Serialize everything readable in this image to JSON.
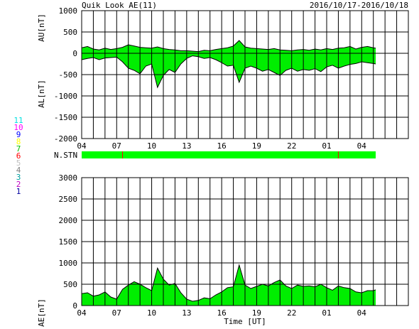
{
  "header": {
    "left_title": "Quik Look AE(11)",
    "right_title": "2016/10/17-2016/10/18"
  },
  "station_legend": [
    {
      "label": "11",
      "color": "#00e0e0"
    },
    {
      "label": "10",
      "color": "#ff00ff"
    },
    {
      "label": "9",
      "color": "#0000ff"
    },
    {
      "label": "8",
      "color": "#ffff00"
    },
    {
      "label": "7",
      "color": "#00c000"
    },
    {
      "label": "6",
      "color": "#ff0000"
    },
    {
      "label": "5",
      "color": "#c0c0c0"
    },
    {
      "label": "4",
      "color": "#808080"
    },
    {
      "label": "3",
      "color": "#00a0a0"
    },
    {
      "label": "2",
      "color": "#c000c0"
    },
    {
      "label": "1",
      "color": "#0000a0"
    }
  ],
  "status_bar": {
    "label": "N.STN",
    "fill_color": "#00ff00",
    "marker_color": "#ff0000",
    "markers_hours": [
      7.5,
      26.0
    ],
    "data_end_hour": 29.2
  },
  "chart_data": [
    {
      "type": "area",
      "ylabel_upper": "AU[nT]",
      "ylabel_lower": "AL[nT]",
      "xlim": [
        4,
        32
      ],
      "ylim": [
        -2000,
        1000
      ],
      "yticks": [
        1000,
        500,
        0,
        -500,
        -1000,
        -1500,
        -2000
      ],
      "xtick_labels": [
        "04",
        "07",
        "10",
        "13",
        "16",
        "19",
        "22",
        "01",
        "04"
      ],
      "xtick_hours": [
        4,
        7,
        10,
        13,
        16,
        19,
        22,
        25,
        28
      ],
      "series": [
        {
          "values_key": "AU",
          "x": [
            4,
            4.5,
            5,
            5.5,
            6,
            6.5,
            7,
            7.5,
            8,
            8.5,
            9,
            9.5,
            10,
            10.5,
            11,
            11.5,
            12,
            12.5,
            13,
            13.5,
            14,
            14.5,
            15,
            15.5,
            16,
            16.5,
            17,
            17.5,
            18,
            18.5,
            19,
            19.5,
            20,
            20.5,
            21,
            21.5,
            22,
            22.5,
            23,
            23.5,
            24,
            24.5,
            25,
            25.5,
            26,
            26.5,
            27,
            27.5,
            28,
            28.5,
            29,
            29.2
          ],
          "y": [
            130,
            160,
            100,
            80,
            120,
            90,
            110,
            140,
            200,
            170,
            140,
            130,
            120,
            150,
            110,
            90,
            80,
            60,
            60,
            50,
            40,
            70,
            60,
            90,
            110,
            130,
            170,
            300,
            150,
            120,
            110,
            100,
            90,
            110,
            80,
            70,
            60,
            80,
            90,
            70,
            100,
            80,
            110,
            90,
            120,
            130,
            160,
            100,
            140,
            160,
            130,
            120
          ]
        },
        {
          "values_key": "AL",
          "x": [
            4,
            4.5,
            5,
            5.5,
            6,
            6.5,
            7,
            7.5,
            8,
            8.5,
            9,
            9.5,
            10,
            10.5,
            11,
            11.5,
            12,
            12.5,
            13,
            13.5,
            14,
            14.5,
            15,
            15.5,
            16,
            16.5,
            17,
            17.5,
            18,
            18.5,
            19,
            19.5,
            20,
            20.5,
            21,
            21.5,
            22,
            22.5,
            23,
            23.5,
            24,
            24.5,
            25,
            25.5,
            26,
            26.5,
            27,
            27.5,
            28,
            28.5,
            29,
            29.2
          ],
          "y": [
            -150,
            -120,
            -100,
            -150,
            -110,
            -100,
            -90,
            -200,
            -350,
            -400,
            -480,
            -300,
            -250,
            -800,
            -520,
            -380,
            -450,
            -250,
            -120,
            -60,
            -80,
            -120,
            -100,
            -150,
            -220,
            -300,
            -280,
            -680,
            -350,
            -300,
            -350,
            -420,
            -380,
            -450,
            -520,
            -400,
            -350,
            -420,
            -380,
            -400,
            -360,
            -430,
            -320,
            -280,
            -350,
            -300,
            -260,
            -240,
            -200,
            -220,
            -240,
            -250
          ]
        }
      ]
    },
    {
      "type": "area",
      "ylabel": "AE[nT]",
      "xlabel": "Time [UT]",
      "xlim": [
        4,
        32
      ],
      "ylim": [
        0,
        3000
      ],
      "yticks": [
        3000,
        2500,
        2000,
        1500,
        1000,
        500,
        0
      ],
      "xtick_labels": [
        "04",
        "07",
        "10",
        "13",
        "16",
        "19",
        "22",
        "01",
        "04"
      ],
      "xtick_hours": [
        4,
        7,
        10,
        13,
        16,
        19,
        22,
        25,
        28
      ],
      "series": [
        {
          "values_key": "AE",
          "x": [
            4,
            4.5,
            5,
            5.5,
            6,
            6.5,
            7,
            7.5,
            8,
            8.5,
            9,
            9.5,
            10,
            10.5,
            11,
            11.5,
            12,
            12.5,
            13,
            13.5,
            14,
            14.5,
            15,
            15.5,
            16,
            16.5,
            17,
            17.5,
            18,
            18.5,
            19,
            19.5,
            20,
            20.5,
            21,
            21.5,
            22,
            22.5,
            23,
            23.5,
            24,
            24.5,
            25,
            25.5,
            26,
            26.5,
            27,
            27.5,
            28,
            28.5,
            29,
            29.2
          ],
          "y": [
            280,
            300,
            220,
            250,
            320,
            200,
            150,
            380,
            480,
            560,
            500,
            420,
            350,
            880,
            620,
            480,
            520,
            300,
            150,
            100,
            120,
            180,
            160,
            250,
            320,
            420,
            440,
            950,
            480,
            400,
            450,
            500,
            460,
            540,
            600,
            460,
            400,
            480,
            450,
            460,
            440,
            500,
            420,
            360,
            460,
            420,
            400,
            320,
            300,
            350,
            350,
            370
          ]
        }
      ]
    }
  ]
}
